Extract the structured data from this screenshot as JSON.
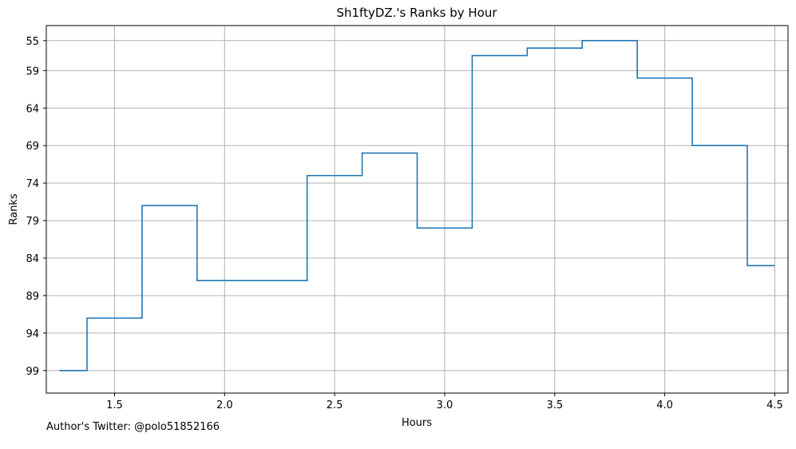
{
  "chart_data": {
    "type": "line",
    "drawstyle": "steps-mid",
    "title": "Sh1ftyDZ.'s Ranks by Hour",
    "xlabel": "Hours",
    "ylabel": "Ranks",
    "xlim": [
      1.19,
      4.56
    ],
    "ylim": [
      102.0,
      53.0
    ],
    "y_inverted": true,
    "grid": true,
    "xticks": [
      1.5,
      2.0,
      2.5,
      3.0,
      3.5,
      4.0,
      4.5
    ],
    "xtick_labels": [
      "1.5",
      "2.0",
      "2.5",
      "3.0",
      "3.5",
      "4.0",
      "4.5"
    ],
    "yticks": [
      55,
      59,
      64,
      69,
      74,
      79,
      84,
      89,
      94,
      99
    ],
    "ytick_labels": [
      "55",
      "59",
      "64",
      "69",
      "74",
      "79",
      "84",
      "89",
      "94",
      "99"
    ],
    "line_color": "#1f77b4",
    "series": [
      {
        "x": [
          1.25,
          1.5,
          1.75,
          2.0,
          2.25,
          2.5,
          2.75,
          3.0,
          3.25,
          3.5,
          3.75,
          4.0,
          4.25,
          4.5
        ],
        "y": [
          99,
          92,
          77,
          87,
          87,
          73,
          70,
          80,
          57,
          56,
          55,
          60,
          69,
          85
        ]
      }
    ]
  },
  "footer": {
    "text": "Author's Twitter: @polo51852166"
  }
}
